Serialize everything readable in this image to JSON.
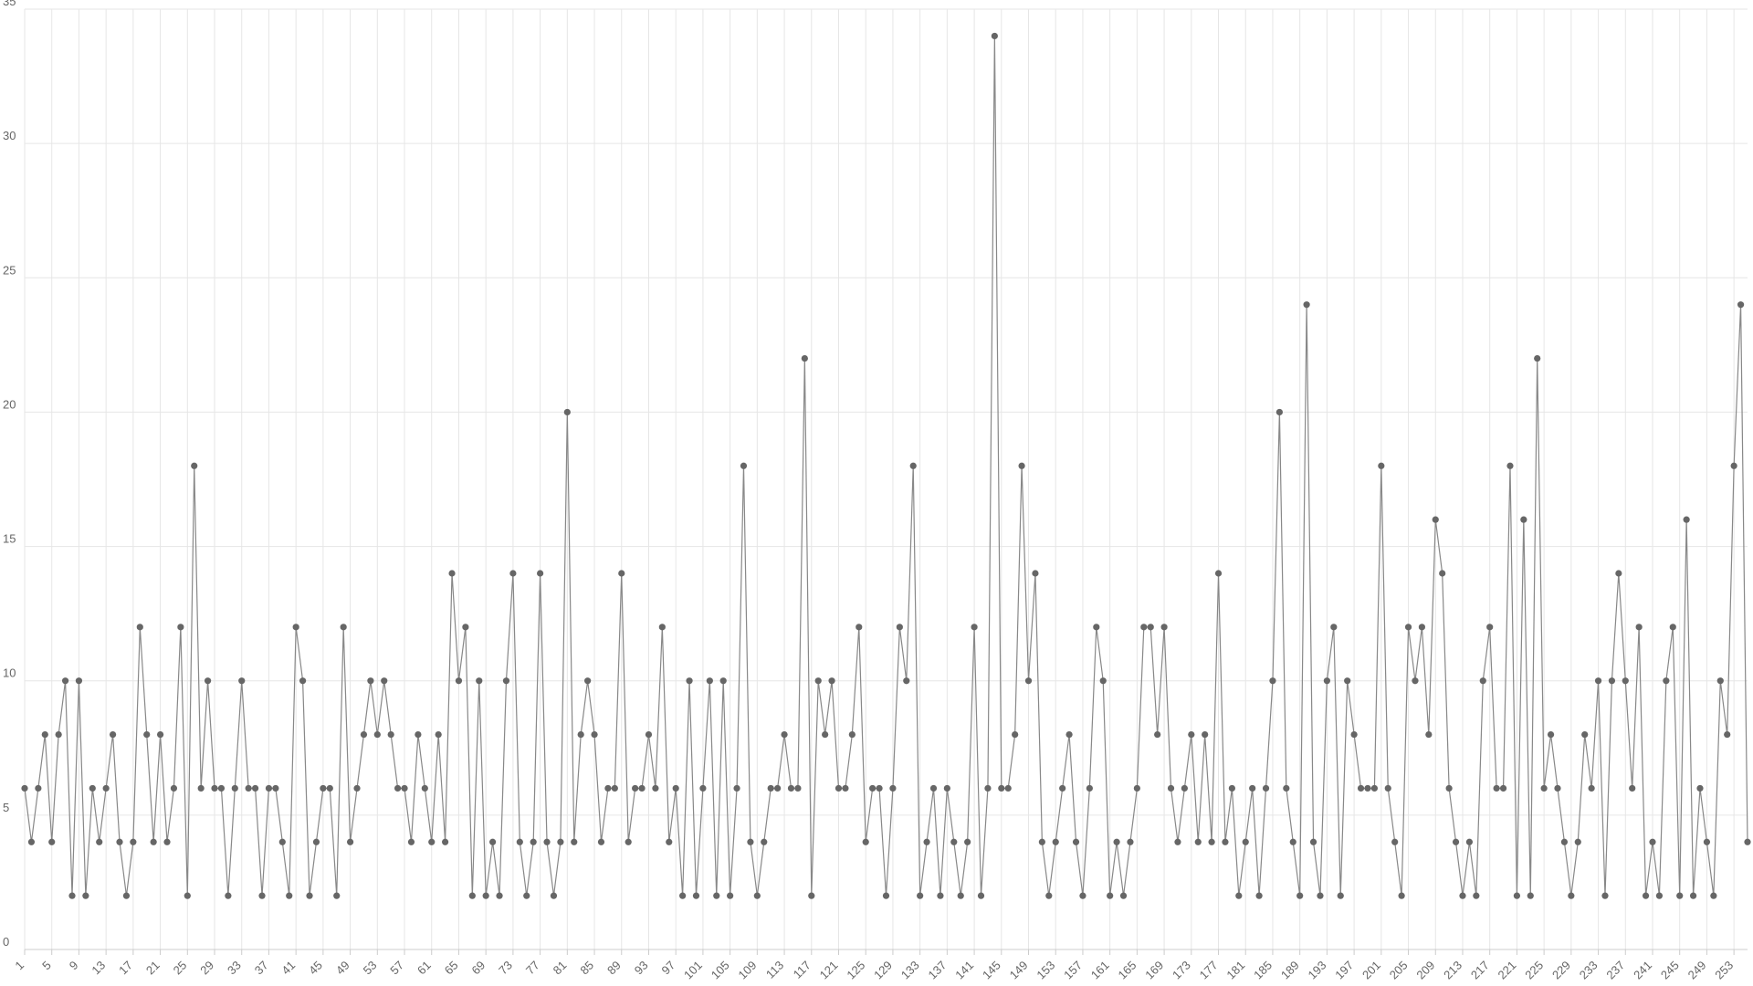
{
  "chart_data": {
    "type": "line",
    "categories": [
      "1",
      null,
      null,
      null,
      "5",
      null,
      null,
      null,
      "9",
      null,
      null,
      null,
      "13",
      null,
      null,
      null,
      "17",
      null,
      null,
      null,
      "21",
      null,
      null,
      null,
      "25",
      null,
      null,
      null,
      "29",
      null,
      null,
      null,
      "33",
      null,
      null,
      null,
      "37",
      null,
      null,
      null,
      "41",
      null,
      null,
      null,
      "45",
      null,
      null,
      null,
      "49",
      null,
      null,
      null,
      "53",
      null,
      null,
      null,
      "57",
      null,
      null,
      null,
      "61",
      null,
      null,
      null,
      "65",
      null,
      null,
      null,
      "69",
      null,
      null,
      null,
      "73",
      null,
      null,
      null,
      "77",
      null,
      null,
      null,
      "81",
      null,
      null,
      null,
      "85",
      null,
      null,
      null,
      "89",
      null,
      null,
      null,
      "93",
      null,
      null,
      null,
      "97",
      null,
      null,
      null,
      "101",
      null,
      null,
      null,
      "105",
      null,
      null,
      null,
      "109",
      null,
      null,
      null,
      "113",
      null,
      null,
      null,
      "117",
      null,
      null,
      null,
      "121",
      null,
      null,
      null,
      "125",
      null,
      null,
      null,
      "129",
      null,
      null,
      null,
      "133",
      null,
      null,
      null,
      "137",
      null,
      null,
      null,
      "141",
      null,
      null,
      null,
      "145",
      null,
      null,
      null,
      "149",
      null,
      null,
      null,
      "153",
      null,
      null,
      null,
      "157",
      null,
      null,
      null,
      "161",
      null,
      null,
      null,
      "165",
      null,
      null,
      null,
      "169",
      null,
      null,
      null,
      "173",
      null,
      null,
      null,
      "177",
      null,
      null,
      null,
      "181",
      null,
      null,
      null,
      "185",
      null,
      null,
      null,
      "189",
      null,
      null,
      null,
      "193",
      null,
      null,
      null,
      "197",
      null,
      null,
      null,
      "201",
      null,
      null,
      null,
      "205",
      null,
      null,
      null,
      "209",
      null,
      null,
      null,
      "213",
      null,
      null,
      null,
      "217",
      null,
      null,
      null,
      "221",
      null,
      null,
      null,
      "225",
      null,
      null,
      null,
      "229",
      null,
      null,
      null,
      "233",
      null,
      null,
      null,
      "237",
      null,
      null,
      null,
      "241",
      null,
      null,
      null,
      "245",
      null,
      null,
      null,
      "249",
      null,
      null,
      null,
      "253",
      null,
      null
    ],
    "values": [
      6,
      4,
      6,
      8,
      4,
      8,
      10,
      2,
      10,
      2,
      6,
      4,
      6,
      8,
      4,
      2,
      4,
      12,
      8,
      4,
      8,
      4,
      6,
      12,
      2,
      18,
      6,
      10,
      6,
      6,
      2,
      6,
      10,
      6,
      6,
      2,
      6,
      6,
      4,
      2,
      12,
      10,
      2,
      4,
      6,
      6,
      2,
      12,
      4,
      6,
      8,
      10,
      8,
      10,
      8,
      6,
      6,
      4,
      8,
      6,
      4,
      8,
      4,
      14,
      10,
      12,
      2,
      10,
      2,
      4,
      2,
      10,
      14,
      4,
      2,
      4,
      14,
      4,
      2,
      4,
      20,
      4,
      8,
      10,
      8,
      4,
      6,
      6,
      14,
      4,
      6,
      6,
      8,
      6,
      12,
      4,
      6,
      2,
      10,
      2,
      6,
      10,
      2,
      10,
      2,
      6,
      18,
      4,
      2,
      4,
      6,
      6,
      8,
      6,
      6,
      22,
      2,
      10,
      8,
      10,
      6,
      6,
      8,
      12,
      4,
      6,
      6,
      2,
      6,
      12,
      10,
      18,
      2,
      4,
      6,
      2,
      6,
      4,
      2,
      4,
      12,
      2,
      6,
      34,
      6,
      6,
      8,
      18,
      10,
      14,
      4,
      2,
      4,
      6,
      8,
      4,
      2,
      6,
      12,
      10,
      2,
      4,
      2,
      4,
      6,
      12,
      12,
      8,
      12,
      6,
      4,
      6,
      8,
      4,
      8,
      4,
      14,
      4,
      6,
      2,
      4,
      6,
      2,
      6,
      10,
      20,
      6,
      4,
      2,
      24,
      4,
      2,
      10,
      12,
      2,
      10,
      8,
      6,
      6,
      6,
      18,
      6,
      4,
      2,
      12,
      10,
      12,
      8,
      16,
      14,
      6,
      4,
      2,
      4,
      2,
      10,
      12,
      6,
      6,
      18,
      2,
      16,
      2,
      22,
      6,
      8,
      6,
      4,
      2,
      4,
      8,
      6,
      10,
      2,
      10,
      14,
      10,
      6,
      12,
      2,
      4,
      2,
      10,
      12,
      2,
      16,
      2,
      6,
      4,
      2,
      10,
      8,
      18,
      24,
      4
    ],
    "color": "#666666",
    "ylim": [
      0,
      35
    ],
    "yticks": [
      0,
      5,
      10,
      15,
      20,
      25,
      30,
      35
    ],
    "grid": true
  }
}
